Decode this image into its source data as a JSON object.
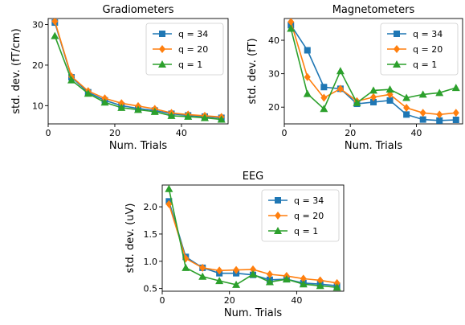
{
  "chart_data": [
    {
      "type": "line",
      "title": "Gradiometers",
      "xlabel": "Num. Trials",
      "ylabel": "std. dev. (fT/cm)",
      "xlim": [
        0,
        54
      ],
      "ylim": [
        5.5,
        31.5
      ],
      "xticks": [
        0,
        20,
        40
      ],
      "yticks": [
        10,
        20,
        30
      ],
      "legend": "top-right",
      "x": [
        2,
        7,
        12,
        17,
        22,
        27,
        32,
        37,
        42,
        47,
        52
      ],
      "series": [
        {
          "name": "q = 34",
          "color": "#1f77b4",
          "marker": "square",
          "values": [
            30.5,
            17.0,
            13.3,
            11.3,
            10.0,
            9.3,
            8.8,
            8.0,
            7.6,
            7.3,
            7.0
          ]
        },
        {
          "name": "q = 20",
          "color": "#ff7f0e",
          "marker": "diamond",
          "values": [
            30.8,
            17.2,
            13.6,
            11.8,
            10.6,
            9.9,
            9.2,
            8.2,
            7.8,
            7.5,
            7.2
          ]
        },
        {
          "name": "q = 1",
          "color": "#2ca02c",
          "marker": "triangle",
          "values": [
            27.2,
            16.3,
            13.0,
            10.8,
            9.5,
            9.0,
            8.5,
            7.5,
            7.3,
            7.0,
            6.6
          ]
        }
      ]
    },
    {
      "type": "line",
      "title": "Magnetometers",
      "xlabel": "Num. Trials",
      "ylabel": "std. dev. (fT)",
      "xlim": [
        0,
        54
      ],
      "ylim": [
        15,
        46.5
      ],
      "xticks": [
        0,
        20,
        40
      ],
      "yticks": [
        20,
        30,
        40
      ],
      "legend": "top-right",
      "x": [
        2,
        7,
        12,
        17,
        22,
        27,
        32,
        37,
        42,
        47,
        52
      ],
      "series": [
        {
          "name": "q = 34",
          "color": "#1f77b4",
          "marker": "square",
          "values": [
            44.5,
            37.0,
            26.0,
            25.5,
            21.0,
            21.5,
            22.0,
            17.8,
            16.3,
            16.0,
            16.2
          ]
        },
        {
          "name": "q = 20",
          "color": "#ff7f0e",
          "marker": "diamond",
          "values": [
            45.5,
            29.0,
            22.8,
            25.5,
            21.8,
            23.0,
            23.8,
            19.8,
            18.3,
            17.8,
            18.3
          ]
        },
        {
          "name": "q = 1",
          "color": "#2ca02c",
          "marker": "triangle",
          "values": [
            43.5,
            24.0,
            19.5,
            30.8,
            21.3,
            25.0,
            25.3,
            22.8,
            23.8,
            24.3,
            25.8
          ]
        }
      ]
    },
    {
      "type": "line",
      "title": "EEG",
      "xlabel": "Num. Trials",
      "ylabel": "std. dev. (uV)",
      "xlim": [
        0,
        54
      ],
      "ylim": [
        0.45,
        2.4
      ],
      "xticks": [
        0,
        20,
        40
      ],
      "yticks": [
        0.5,
        1.0,
        1.5,
        2.0
      ],
      "yticklabels": [
        "0.5",
        "1.0",
        "1.5",
        "2.0"
      ],
      "legend": "top-right",
      "x": [
        2,
        7,
        12,
        17,
        22,
        27,
        32,
        37,
        42,
        47,
        52
      ],
      "series": [
        {
          "name": "q = 34",
          "color": "#1f77b4",
          "marker": "square",
          "values": [
            2.1,
            1.08,
            0.88,
            0.78,
            0.78,
            0.75,
            0.66,
            0.67,
            0.6,
            0.58,
            0.55
          ]
        },
        {
          "name": "q = 20",
          "color": "#ff7f0e",
          "marker": "diamond",
          "values": [
            2.05,
            1.05,
            0.88,
            0.83,
            0.84,
            0.85,
            0.76,
            0.73,
            0.68,
            0.65,
            0.6
          ]
        },
        {
          "name": "q = 1",
          "color": "#2ca02c",
          "marker": "triangle",
          "values": [
            2.33,
            0.88,
            0.72,
            0.64,
            0.57,
            0.76,
            0.62,
            0.67,
            0.58,
            0.55,
            0.52
          ]
        }
      ]
    }
  ]
}
